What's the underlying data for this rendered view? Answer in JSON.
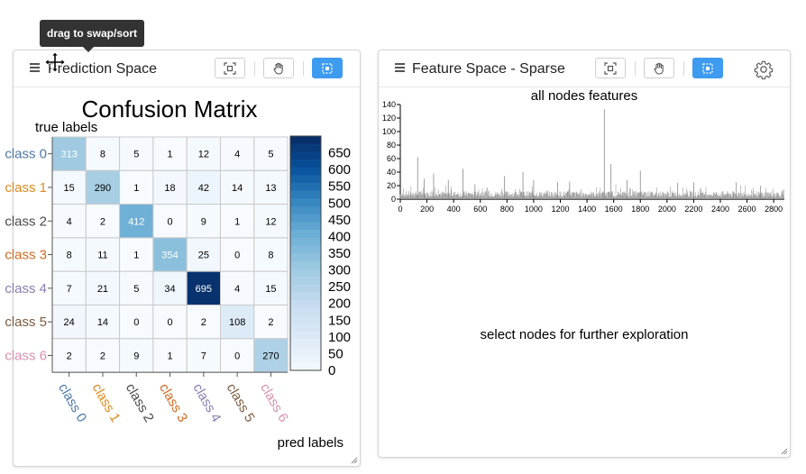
{
  "tooltip": {
    "text": "drag to swap/sort"
  },
  "left_panel": {
    "title": "Prediction Space",
    "buttons": [
      "fit-view",
      "pan-mode",
      "select-mode"
    ],
    "active_button": "select-mode"
  },
  "right_panel": {
    "title": "Feature Space - Sparse",
    "buttons": [
      "fit-view",
      "pan-mode",
      "select-mode",
      "settings"
    ],
    "active_button": "select-mode",
    "hist_title": "all nodes features",
    "empty_message": "select nodes for further exploration"
  },
  "colors": {
    "accent": "#3d9bf0",
    "heat_low": "#f7fbff",
    "heat_high": "#08306b"
  },
  "chart_data": [
    {
      "type": "heatmap",
      "title": "Confusion Matrix",
      "ylabel": "true labels",
      "xlabel": "pred labels",
      "row_labels": [
        "class 0",
        "class 1",
        "class 2",
        "class 3",
        "class 4",
        "class 5",
        "class 6"
      ],
      "col_labels": [
        "class 0",
        "class 1",
        "class 2",
        "class 3",
        "class 4",
        "class 5",
        "class 6"
      ],
      "label_colors": [
        "#4c78a8",
        "#e08a1e",
        "#4a4a4a",
        "#d2691e",
        "#8a7db0",
        "#7b5b40",
        "#d98fb0"
      ],
      "values": [
        [
          313,
          8,
          5,
          1,
          12,
          4,
          5
        ],
        [
          15,
          290,
          1,
          18,
          42,
          14,
          13
        ],
        [
          4,
          2,
          412,
          0,
          9,
          1,
          12
        ],
        [
          8,
          11,
          1,
          354,
          25,
          0,
          8
        ],
        [
          7,
          21,
          5,
          34,
          695,
          4,
          15
        ],
        [
          24,
          14,
          0,
          0,
          2,
          108,
          2
        ],
        [
          2,
          2,
          9,
          1,
          7,
          0,
          270
        ]
      ],
      "colorbar_ticks": [
        0,
        50,
        100,
        150,
        200,
        250,
        300,
        350,
        400,
        450,
        500,
        550,
        600,
        650
      ],
      "value_range": [
        0,
        700
      ]
    },
    {
      "type": "bar",
      "title": "all nodes features",
      "x_ticks": [
        0,
        200,
        400,
        600,
        800,
        1000,
        1200,
        1400,
        1600,
        1800,
        2000,
        2200,
        2400,
        2600,
        2800
      ],
      "y_ticks": [
        0,
        20,
        40,
        60,
        80,
        100,
        120,
        140
      ],
      "xlim": [
        0,
        2880
      ],
      "ylim": [
        0,
        140
      ],
      "peaks": [
        [
          130,
          62
        ],
        [
          180,
          30
        ],
        [
          250,
          38
        ],
        [
          360,
          28
        ],
        [
          470,
          45
        ],
        [
          560,
          22
        ],
        [
          780,
          34
        ],
        [
          920,
          40
        ],
        [
          1000,
          28
        ],
        [
          1180,
          25
        ],
        [
          1270,
          26
        ],
        [
          1530,
          133
        ],
        [
          1580,
          52
        ],
        [
          1700,
          28
        ],
        [
          1800,
          42
        ],
        [
          2080,
          24
        ],
        [
          2200,
          25
        ],
        [
          2520,
          25
        ],
        [
          2700,
          20
        ]
      ]
    }
  ]
}
